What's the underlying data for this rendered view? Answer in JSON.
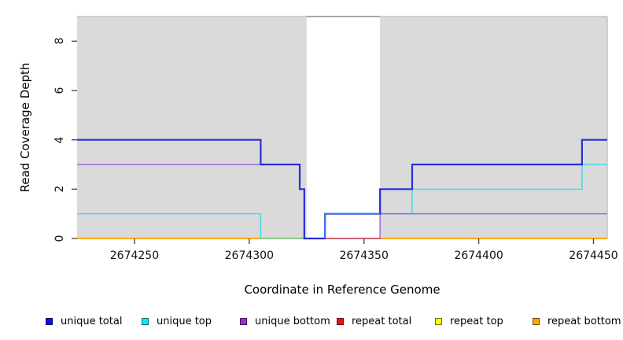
{
  "colors": {
    "region_bg": "#DADADA",
    "frame": "#ADADAD",
    "frame_dark": "#8A8A8A",
    "tick": "#4A4A4A"
  },
  "chart_data": {
    "type": "line",
    "subtype": "step-coverage",
    "xlabel": "Coordinate in Reference Genome",
    "ylabel": "Read Coverage Depth",
    "xlim": [
      2674225,
      2674456
    ],
    "ylim": [
      0,
      9
    ],
    "grid": false,
    "legend_position": "bottom",
    "x_ticks": [
      {
        "value": 2674250,
        "label": "2674250"
      },
      {
        "value": 2674300,
        "label": "2674300"
      },
      {
        "value": 2674350,
        "label": "2674350"
      },
      {
        "value": 2674400,
        "label": "2674400"
      },
      {
        "value": 2674450,
        "label": "2674450"
      }
    ],
    "y_ticks": [
      {
        "value": 0,
        "label": "0"
      },
      {
        "value": 2,
        "label": "2"
      },
      {
        "value": 4,
        "label": "4"
      },
      {
        "value": 6,
        "label": "6"
      },
      {
        "value": 8,
        "label": "8"
      }
    ],
    "coverage_regions": [
      [
        2674225,
        2674325
      ],
      [
        2674357,
        2674456
      ]
    ],
    "gap_region": [
      2674325,
      2674357
    ],
    "draw_order": [
      "repeat total",
      "repeat top",
      "repeat bottom",
      "unique top",
      "unique bottom",
      "unique total"
    ],
    "series": [
      {
        "name": "unique total",
        "legend_color": "#0D0DE8",
        "line_color": "#2C2CDC",
        "width": 2.2,
        "steps": [
          [
            2674225,
            4
          ],
          [
            2674305,
            3
          ],
          [
            2674322,
            2
          ],
          [
            2674324,
            0
          ],
          [
            2674333,
            1
          ],
          [
            2674357,
            2
          ],
          [
            2674371,
            3
          ],
          [
            2674445,
            4
          ]
        ]
      },
      {
        "name": "unique top",
        "legend_color": "#00F0F0",
        "line_color": "#49D7E4",
        "width": 1.5,
        "steps": [
          [
            2674225,
            1
          ],
          [
            2674305,
            0
          ],
          [
            2674333,
            1
          ],
          [
            2674371,
            2
          ],
          [
            2674445,
            3
          ]
        ]
      },
      {
        "name": "unique bottom",
        "legend_color": "#9B30D0",
        "line_color": "#A266D8",
        "width": 1.5,
        "steps": [
          [
            2674225,
            3
          ],
          [
            2674322,
            2
          ],
          [
            2674324,
            0
          ],
          [
            2674357,
            1
          ]
        ]
      },
      {
        "name": "repeat total",
        "legend_color": "#EE1111",
        "line_color": "#DD2222",
        "width": 1.5,
        "steps": [
          [
            2674225,
            0
          ]
        ]
      },
      {
        "name": "repeat top",
        "legend_color": "#FFFF00",
        "line_color": "#F0F000",
        "width": 1.5,
        "steps": [
          [
            2674225,
            0
          ]
        ]
      },
      {
        "name": "repeat bottom",
        "legend_color": "#FFA500",
        "line_color": "#FFA500",
        "width": 2,
        "steps": [
          [
            2674225,
            0
          ]
        ]
      }
    ],
    "overlays": [
      {
        "name": "zero-line-blend-green",
        "after": "unique top",
        "color": "#8CC694",
        "width": 1.6,
        "path": [
          [
            2674305,
            0
          ],
          [
            2674325,
            0
          ]
        ]
      },
      {
        "name": "zero-line-blend-crimson",
        "after": "unique bottom",
        "color": "#C75878",
        "width": 1.6,
        "path": [
          [
            2674333,
            0
          ],
          [
            2674357,
            0
          ]
        ]
      },
      {
        "name": "gap-highlight-blue",
        "after": "unique total",
        "color": "#3B79F0",
        "width": 2,
        "path": [
          [
            2674333,
            0
          ],
          [
            2674333,
            1
          ],
          [
            2674357,
            1
          ]
        ]
      }
    ]
  },
  "legend": {
    "items": [
      {
        "label": "unique total",
        "color": "#0D0DE8"
      },
      {
        "label": "unique top",
        "color": "#00F0F0"
      },
      {
        "label": "unique bottom",
        "color": "#9B30D0"
      },
      {
        "label": "repeat total",
        "color": "#EE1111"
      },
      {
        "label": "repeat top",
        "color": "#FFFF00"
      },
      {
        "label": "repeat bottom",
        "color": "#FFA500"
      }
    ]
  }
}
